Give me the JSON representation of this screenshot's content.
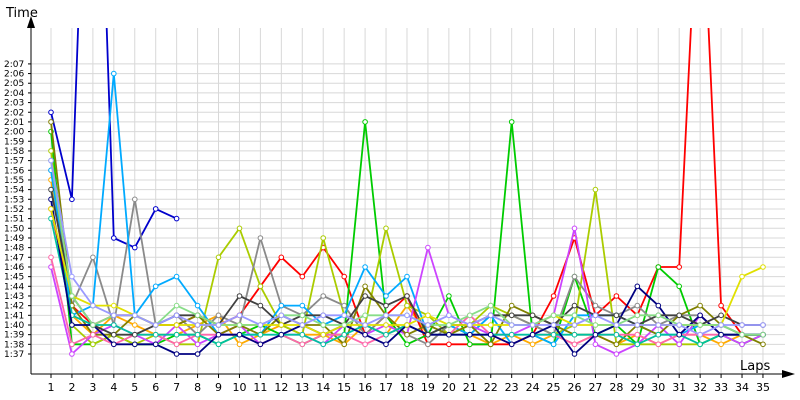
{
  "chart_data": {
    "type": "line",
    "title": "",
    "xlabel": "Laps",
    "ylabel": "Time",
    "x_ticks": [
      1,
      2,
      3,
      4,
      5,
      6,
      7,
      8,
      9,
      10,
      11,
      12,
      13,
      14,
      15,
      16,
      17,
      18,
      19,
      20,
      21,
      22,
      23,
      24,
      25,
      26,
      27,
      28,
      29,
      30,
      31,
      32,
      33,
      34,
      35
    ],
    "y_ticks": [
      "1:37",
      "1:38",
      "1:39",
      "1:40",
      "1:41",
      "1:42",
      "1:43",
      "1:44",
      "1:45",
      "1:46",
      "1:47",
      "1:48",
      "1:49",
      "1:50",
      "1:51",
      "1:52",
      "1:53",
      "1:54",
      "1:55",
      "1:56",
      "1:57",
      "1:58",
      "1:59",
      "2:00",
      "2:01",
      "2:02",
      "2:03",
      "2:04",
      "2:05",
      "2:06",
      "2:07"
    ],
    "xlim": [
      1,
      35
    ],
    "ylim_seconds": [
      96,
      130
    ],
    "grid": true,
    "legend": "none",
    "series": [
      {
        "color": "#0000cc",
        "values": [
          122,
          113,
          173,
          109,
          108,
          112,
          111
        ]
      },
      {
        "color": "#ffaa00",
        "values": [
          115,
          101,
          99,
          101,
          100,
          99,
          99,
          100,
          101,
          98,
          99,
          100,
          99,
          99,
          98,
          100,
          99,
          102,
          99,
          100,
          99,
          98,
          99,
          98,
          99,
          98,
          99,
          98,
          99,
          98,
          99,
          99,
          98,
          99,
          99
        ]
      },
      {
        "color": "#ff0000",
        "values": [
          112,
          102,
          100,
          101,
          101,
          100,
          100,
          101,
          100,
          101,
          104,
          107,
          105,
          108,
          105,
          99,
          101,
          103,
          98,
          98,
          98,
          98,
          98,
          99,
          103,
          109,
          101,
          103,
          101,
          106,
          106,
          150,
          102,
          99,
          99
        ]
      },
      {
        "color": "#00cc00",
        "values": [
          120,
          98,
          98,
          99,
          98,
          98,
          99,
          99,
          98,
          99,
          100,
          99,
          98,
          99,
          99,
          121,
          101,
          98,
          99,
          103,
          98,
          98,
          121,
          99,
          98,
          105,
          99,
          100,
          98,
          106,
          104,
          98,
          99,
          98,
          99
        ]
      },
      {
        "color": "#aacc00",
        "values": [
          118,
          100,
          98,
          99,
          98,
          99,
          98,
          98,
          107,
          110,
          104,
          100,
          99,
          109,
          101,
          100,
          110,
          102,
          101,
          99,
          100,
          102,
          101,
          100,
          99,
          100,
          114,
          98,
          98,
          98,
          98,
          98,
          99,
          99,
          99
        ]
      },
      {
        "color": "#8a8a8a",
        "values": [
          116,
          102,
          107,
          100,
          113,
          100,
          101,
          99,
          101,
          100,
          109,
          102,
          101,
          103,
          102,
          99,
          101,
          99,
          98,
          100,
          99,
          101,
          101,
          100,
          99,
          105,
          102,
          101,
          102,
          100,
          101,
          101,
          99,
          99,
          99
        ]
      },
      {
        "color": "#00aaff",
        "values": [
          116,
          101,
          102,
          126,
          101,
          104,
          105,
          102,
          99,
          99,
          99,
          102,
          102,
          100,
          101,
          106,
          103,
          105,
          99,
          100,
          99,
          101,
          98,
          99,
          98,
          101,
          101,
          101,
          100,
          99,
          99,
          100,
          100,
          99,
          99
        ]
      },
      {
        "color": "#cc44ff",
        "values": [
          106,
          97,
          99,
          100,
          99,
          98,
          100,
          98,
          99,
          100,
          98,
          99,
          99,
          98,
          100,
          99,
          100,
          99,
          108,
          101,
          100,
          99,
          99,
          100,
          101,
          110,
          98,
          97,
          98,
          100,
          98,
          101,
          99,
          98,
          99
        ]
      },
      {
        "color": "#808000",
        "values": [
          121,
          102,
          99,
          99,
          101,
          100,
          100,
          101,
          99,
          100,
          99,
          101,
          100,
          100,
          98,
          104,
          101,
          99,
          100,
          99,
          100,
          98,
          102,
          101,
          100,
          99,
          99,
          98,
          100,
          99,
          101,
          102,
          100,
          99,
          98
        ]
      },
      {
        "color": "#ff66aa",
        "values": [
          107,
          98,
          99,
          98,
          99,
          99,
          98,
          99,
          99,
          99,
          98,
          99,
          98,
          99,
          99,
          98,
          99,
          100,
          99,
          99,
          101,
          99,
          98,
          99,
          99,
          98,
          99,
          99,
          99,
          98,
          99,
          99,
          99,
          99,
          99
        ]
      },
      {
        "color": "#00c0a0",
        "values": [
          111,
          101,
          100,
          100,
          99,
          99,
          99,
          99,
          98,
          99,
          99,
          99,
          99,
          98,
          99,
          100,
          99,
          100,
          99,
          99,
          99,
          99,
          99,
          99,
          99,
          99,
          99,
          99,
          98,
          99,
          99,
          98,
          99,
          99,
          99
        ]
      },
      {
        "color": "#000080",
        "values": [
          113,
          100,
          100,
          98,
          98,
          98,
          97,
          97,
          99,
          99,
          98,
          99,
          100,
          99,
          100,
          99,
          98,
          100,
          99,
          99,
          99,
          99,
          98,
          99,
          100,
          97,
          99,
          100,
          104,
          102,
          99,
          101,
          99,
          99,
          99
        ]
      },
      {
        "color": "#404040",
        "values": [
          114,
          103,
          100,
          99,
          99,
          100,
          101,
          101,
          100,
          103,
          102,
          100,
          101,
          101,
          100,
          103,
          102,
          103,
          99,
          100,
          100,
          101,
          101,
          101,
          100,
          102,
          101,
          101,
          100,
          101,
          101,
          100,
          101,
          100,
          100
        ]
      },
      {
        "color": "#e0e000",
        "values": [
          112,
          103,
          102,
          102,
          101,
          100,
          100,
          100,
          100,
          100,
          100,
          100,
          100,
          99,
          100,
          100,
          100,
          100,
          101,
          100,
          100,
          100,
          100,
          100,
          101,
          100,
          100,
          100,
          100,
          100,
          100,
          100,
          100,
          105,
          106
        ]
      },
      {
        "color": "#88dd88",
        "values": [
          117,
          103,
          100,
          101,
          101,
          100,
          102,
          101,
          100,
          100,
          100,
          101,
          101,
          100,
          100,
          101,
          101,
          101,
          100,
          100,
          101,
          102,
          100,
          100,
          101,
          101,
          100,
          100,
          101,
          101,
          100,
          100,
          100,
          99,
          99
        ]
      },
      {
        "color": "#9999ff",
        "values": [
          117,
          105,
          102,
          101,
          101,
          100,
          101,
          100,
          100,
          101,
          100,
          101,
          100,
          101,
          101,
          100,
          101,
          101,
          100,
          101,
          100,
          101,
          100,
          100,
          100,
          100,
          101,
          100,
          100,
          100,
          100,
          99,
          100,
          100,
          100
        ]
      }
    ]
  }
}
